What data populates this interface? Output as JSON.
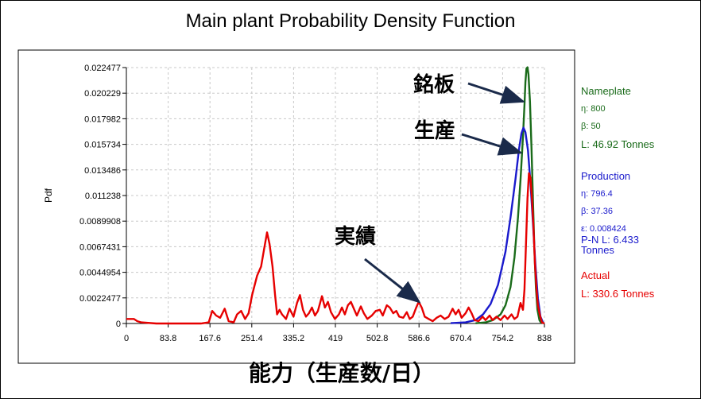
{
  "chart_data": {
    "type": "line",
    "title": "Main plant Probability Density Function",
    "xlabel": "能力（生産数/日）",
    "ylabel": "Pdf",
    "xlim": [
      0,
      838
    ],
    "ylim": [
      0,
      0.022477
    ],
    "x_ticks": [
      "0",
      "83.8",
      "167.6",
      "251.4",
      "335.2",
      "419",
      "502.8",
      "586.6",
      "670.4",
      "754.2",
      "838"
    ],
    "y_ticks": [
      "0",
      "0.0022477",
      "0.0044954",
      "0.0067431",
      "0.0089908",
      "0.011238",
      "0.013486",
      "0.015734",
      "0.017982",
      "0.020229",
      "0.022477"
    ],
    "grid": true,
    "legend_position": "right",
    "series": [
      {
        "name": "Nameplate",
        "color": "#1a6b1a",
        "points": [
          [
            700,
            2e-05
          ],
          [
            720,
            0.0001
          ],
          [
            735,
            0.0003
          ],
          [
            750,
            0.0008
          ],
          [
            760,
            0.0016
          ],
          [
            770,
            0.0032
          ],
          [
            778,
            0.0058
          ],
          [
            785,
            0.0093
          ],
          [
            790,
            0.0126
          ],
          [
            795,
            0.0164
          ],
          [
            798,
            0.0192
          ],
          [
            800,
            0.0212
          ],
          [
            802,
            0.0224
          ],
          [
            804,
            0.0225
          ],
          [
            806,
            0.0219
          ],
          [
            809,
            0.0195
          ],
          [
            812,
            0.0155
          ],
          [
            815,
            0.0108
          ],
          [
            818,
            0.0064
          ],
          [
            821,
            0.0031
          ],
          [
            824,
            0.0012
          ],
          [
            828,
            0.0003
          ],
          [
            832,
            2e-05
          ]
        ]
      },
      {
        "name": "Production",
        "color": "#1a1acc",
        "points": [
          [
            650,
            3e-05
          ],
          [
            680,
            0.0001
          ],
          [
            700,
            0.0003
          ],
          [
            715,
            0.0008
          ],
          [
            730,
            0.0017
          ],
          [
            745,
            0.0034
          ],
          [
            760,
            0.0063
          ],
          [
            770,
            0.0093
          ],
          [
            780,
            0.0127
          ],
          [
            787,
            0.0153
          ],
          [
            792,
            0.0167
          ],
          [
            796,
            0.0172
          ],
          [
            800,
            0.0168
          ],
          [
            805,
            0.0152
          ],
          [
            810,
            0.0124
          ],
          [
            815,
            0.0088
          ],
          [
            820,
            0.0051
          ],
          [
            825,
            0.0022
          ],
          [
            830,
            0.0006
          ],
          [
            835,
            0.0001
          ]
        ]
      },
      {
        "name": "Actual",
        "color": "#e60000",
        "points": [
          [
            0,
            0.0004
          ],
          [
            15,
            0.0004
          ],
          [
            22,
            0.0002
          ],
          [
            30,
            0.0001
          ],
          [
            60,
            0
          ],
          [
            150,
            0
          ],
          [
            165,
            0.0001
          ],
          [
            172,
            0.0011
          ],
          [
            180,
            0.0007
          ],
          [
            188,
            0.0005
          ],
          [
            197,
            0.0013
          ],
          [
            205,
            0.0002
          ],
          [
            215,
            0.0001
          ],
          [
            222,
            0.0008
          ],
          [
            230,
            0.0011
          ],
          [
            238,
            0.0004
          ],
          [
            245,
            0.0009
          ],
          [
            252,
            0.0025
          ],
          [
            262,
            0.0042
          ],
          [
            270,
            0.005
          ],
          [
            276,
            0.0065
          ],
          [
            282,
            0.008
          ],
          [
            287,
            0.007
          ],
          [
            293,
            0.005
          ],
          [
            298,
            0.0025
          ],
          [
            302,
            0.0008
          ],
          [
            307,
            0.0012
          ],
          [
            312,
            0.0008
          ],
          [
            320,
            0.0004
          ],
          [
            327,
            0.0013
          ],
          [
            335,
            0.0006
          ],
          [
            342,
            0.0018
          ],
          [
            348,
            0.0025
          ],
          [
            354,
            0.0012
          ],
          [
            360,
            0.0006
          ],
          [
            366,
            0.0009
          ],
          [
            372,
            0.0014
          ],
          [
            378,
            0.0007
          ],
          [
            384,
            0.0011
          ],
          [
            392,
            0.0024
          ],
          [
            398,
            0.0014
          ],
          [
            404,
            0.0019
          ],
          [
            410,
            0.001
          ],
          [
            418,
            0.0004
          ],
          [
            426,
            0.0008
          ],
          [
            432,
            0.0014
          ],
          [
            438,
            0.0008
          ],
          [
            444,
            0.0016
          ],
          [
            450,
            0.0019
          ],
          [
            456,
            0.0013
          ],
          [
            462,
            0.0007
          ],
          [
            470,
            0.0015
          ],
          [
            476,
            0.0009
          ],
          [
            483,
            0.0004
          ],
          [
            492,
            0.0007
          ],
          [
            500,
            0.0011
          ],
          [
            508,
            0.0012
          ],
          [
            514,
            0.0007
          ],
          [
            522,
            0.0016
          ],
          [
            528,
            0.0014
          ],
          [
            535,
            0.0009
          ],
          [
            541,
            0.0011
          ],
          [
            547,
            0.0006
          ],
          [
            555,
            0.0005
          ],
          [
            562,
            0.001
          ],
          [
            568,
            0.0004
          ],
          [
            574,
            0.0006
          ],
          [
            580,
            0.0013
          ],
          [
            586,
            0.0019
          ],
          [
            592,
            0.0014
          ],
          [
            598,
            0.0006
          ],
          [
            606,
            0.0004
          ],
          [
            614,
            0.0002
          ],
          [
            622,
            0.0005
          ],
          [
            630,
            0.0007
          ],
          [
            638,
            0.0004
          ],
          [
            646,
            0.0006
          ],
          [
            654,
            0.0013
          ],
          [
            660,
            0.0008
          ],
          [
            666,
            0.0012
          ],
          [
            672,
            0.0005
          ],
          [
            680,
            0.0009
          ],
          [
            686,
            0.0014
          ],
          [
            692,
            0.0009
          ],
          [
            698,
            0.0003
          ],
          [
            706,
            0.0002
          ],
          [
            714,
            0.0006
          ],
          [
            720,
            0.0003
          ],
          [
            728,
            0.0007
          ],
          [
            734,
            0.0003
          ],
          [
            742,
            0.0006
          ],
          [
            750,
            0.0003
          ],
          [
            758,
            0.0007
          ],
          [
            764,
            0.0004
          ],
          [
            772,
            0.0008
          ],
          [
            778,
            0.0004
          ],
          [
            784,
            0.0006
          ],
          [
            790,
            0.0018
          ],
          [
            795,
            0.0012
          ],
          [
            798,
            0.003
          ],
          [
            801,
            0.007
          ],
          [
            804,
            0.011
          ],
          [
            807,
            0.0132
          ],
          [
            810,
            0.0128
          ],
          [
            813,
            0.011
          ],
          [
            816,
            0.0085
          ],
          [
            819,
            0.0052
          ],
          [
            822,
            0.003
          ],
          [
            825,
            0.0016
          ],
          [
            829,
            0.0007
          ],
          [
            833,
            0.0001
          ],
          [
            838,
            0
          ]
        ]
      }
    ],
    "legend": [
      {
        "name": "Nameplate",
        "color": "#1a6b1a",
        "lines": [
          "η: 800",
          "β: 50",
          "L: 46.92 Tonnes"
        ]
      },
      {
        "name": "Production",
        "color": "#1a1acc",
        "lines": [
          "η: 796.4",
          "β: 37.36",
          "ε: 0.008424",
          "P-N L: 6.433 Tonnes"
        ]
      },
      {
        "name": "Actual",
        "color": "#e60000",
        "lines": [
          "L: 330.6 Tonnes"
        ]
      }
    ],
    "annotations": [
      {
        "text": "銘板",
        "series": "Nameplate",
        "x": 795,
        "y": 0.0195
      },
      {
        "text": "生産",
        "series": "Production",
        "x": 790,
        "y": 0.015
      },
      {
        "text": "実績",
        "series": "Actual",
        "x": 586.6,
        "y": 0.0019
      }
    ]
  }
}
